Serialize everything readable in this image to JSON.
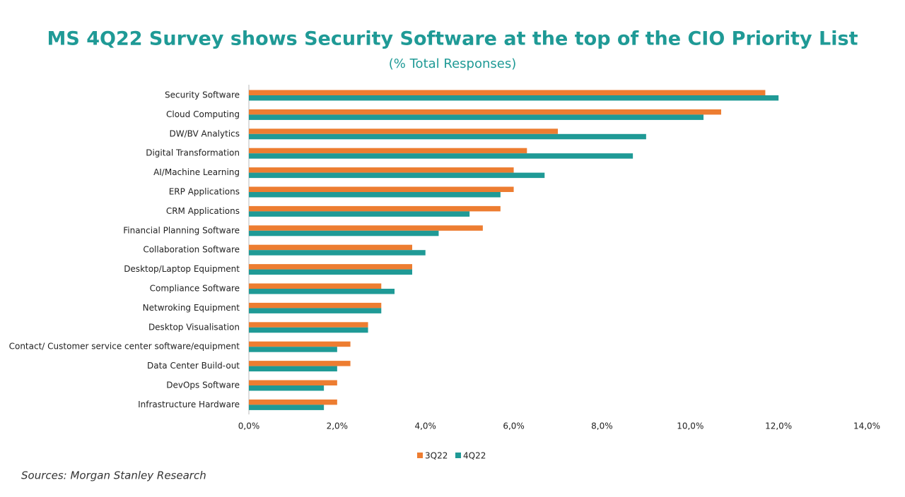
{
  "chart_data": {
    "type": "hbar",
    "title": "MS 4Q22 Survey shows Security Software at the top of the CIO Priority List",
    "subtitle": "(% Total Responses)",
    "source": "Sources: Morgan Stanley Research",
    "categories": [
      "Security Software",
      "Cloud Computing",
      "DW/BV Analytics",
      "Digital Transformation",
      "AI/Machine Learning",
      "ERP Applications",
      "CRM Applications",
      "Financial Planning Software",
      "Collaboration Software",
      "Desktop/Laptop Equipment",
      "Compliance Software",
      "Netwroking Equipment",
      "Desktop Visualisation",
      "Contact/ Customer service center software/equipment",
      "Data Center Build-out",
      "DevOps Software",
      "Infrastructure Hardware"
    ],
    "series": [
      {
        "name": "3Q22",
        "color": "#ed7d31",
        "values": [
          11.7,
          10.7,
          7.0,
          6.3,
          6.0,
          6.0,
          5.7,
          5.3,
          3.7,
          3.7,
          3.0,
          3.0,
          2.7,
          2.3,
          2.3,
          2.0,
          2.0
        ]
      },
      {
        "name": "4Q22",
        "color": "#1f9a96",
        "values": [
          12.0,
          10.3,
          9.0,
          8.7,
          6.7,
          5.7,
          5.0,
          4.3,
          4.0,
          3.7,
          3.3,
          3.0,
          2.7,
          2.0,
          2.0,
          1.7,
          1.7
        ]
      }
    ],
    "xlim": [
      0,
      14
    ],
    "xticks": [
      {
        "value": 0,
        "label": "0,0%"
      },
      {
        "value": 2,
        "label": "2,0%"
      },
      {
        "value": 4,
        "label": "4,0%"
      },
      {
        "value": 6,
        "label": "6,0%"
      },
      {
        "value": 8,
        "label": "8,0%"
      },
      {
        "value": 10,
        "label": "10,0%"
      },
      {
        "value": 12,
        "label": "12,0%"
      },
      {
        "value": 14,
        "label": "14,0%"
      }
    ]
  }
}
